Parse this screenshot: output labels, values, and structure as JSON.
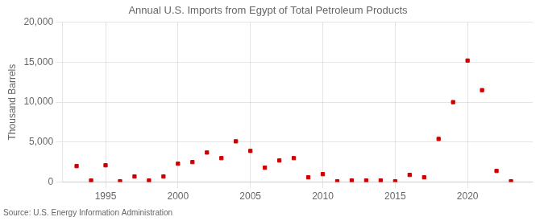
{
  "chart_data": {
    "type": "scatter",
    "title": "Annual U.S. Imports from Egypt of Total Petroleum Products",
    "ylabel": "Thousand Barrels",
    "source": "Source: U.S. Energy Information Administration",
    "color": "#cc0000",
    "marker": "square",
    "grid": true,
    "x": [
      1993,
      1994,
      1995,
      1996,
      1997,
      1998,
      1999,
      2000,
      2001,
      2002,
      2003,
      2004,
      2005,
      2006,
      2007,
      2008,
      2009,
      2010,
      2011,
      2012,
      2013,
      2014,
      2015,
      2016,
      2017,
      2018,
      2019,
      2020,
      2021,
      2022,
      2023
    ],
    "values": [
      2000,
      200,
      2100,
      100,
      700,
      200,
      700,
      2300,
      2500,
      3700,
      3000,
      5100,
      3900,
      1800,
      2700,
      3000,
      600,
      1000,
      100,
      200,
      200,
      200,
      100,
      900,
      600,
      5400,
      10000,
      15200,
      11500,
      1400,
      100
    ],
    "xlim": [
      1992,
      2024.5
    ],
    "xticks": [
      1995,
      2000,
      2005,
      2010,
      2015,
      2020
    ],
    "ylim": [
      0,
      20000
    ],
    "yticks": [
      0,
      {
        "value": 5000,
        "label": "5,000"
      },
      {
        "value": 10000,
        "label": "10,000"
      },
      {
        "value": 15000,
        "label": "15,000"
      },
      {
        "value": 20000,
        "label": "20,000"
      }
    ]
  }
}
